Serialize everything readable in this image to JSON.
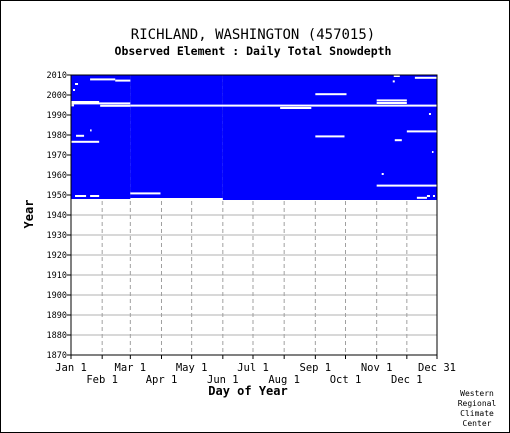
{
  "chart_data": {
    "type": "heatmap",
    "title": "RICHLAND, WASHINGTON   (457015)",
    "subtitle": "Observed Element : Daily Total Snowdepth",
    "xlabel": "Day of Year",
    "ylabel": "Year",
    "x_range_day_of_year": [
      1,
      365
    ],
    "x_ticks_top_row": [
      {
        "label": "Jan 1",
        "day": 1
      },
      {
        "label": "Mar 1",
        "day": 60
      },
      {
        "label": "May 1",
        "day": 121
      },
      {
        "label": "Jul 1",
        "day": 182
      },
      {
        "label": "Sep 1",
        "day": 244
      },
      {
        "label": "Nov 1",
        "day": 305
      },
      {
        "label": "Dec 31",
        "day": 365
      }
    ],
    "x_ticks_bottom_row": [
      {
        "label": "Feb 1",
        "day": 32
      },
      {
        "label": "Apr 1",
        "day": 91
      },
      {
        "label": "Jun 1",
        "day": 152
      },
      {
        "label": "Aug 1",
        "day": 213
      },
      {
        "label": "Oct 1",
        "day": 274
      },
      {
        "label": "Dec 1",
        "day": 335
      }
    ],
    "month_gridline_days": [
      1,
      32,
      60,
      91,
      121,
      152,
      182,
      213,
      244,
      274,
      305,
      335,
      365
    ],
    "y_range": [
      1870,
      2010
    ],
    "y_ticks": [
      1870,
      1880,
      1890,
      1900,
      1910,
      1920,
      1930,
      1940,
      1950,
      1960,
      1970,
      1980,
      1990,
      2000,
      2010
    ],
    "grid": true,
    "data_color": "#0000ff",
    "gap_color": "#ffffff",
    "record_span": {
      "start_year": 1948,
      "start_day_jan_to_feb": 1,
      "start_day_from_mar": 60,
      "start_day_from_jun": 152,
      "end_year": 2010,
      "end_day": 365
    },
    "gaps": [
      {
        "year": 1996.5,
        "day_start": 1,
        "day_end": 29
      },
      {
        "year": 1995.8,
        "day_start": 1,
        "day_end": 60
      },
      {
        "year": 1994.6,
        "day_start": 30,
        "day_end": 60
      },
      {
        "year": 1994.8,
        "day_start": 1,
        "day_end": 4
      },
      {
        "year": 1994.7,
        "day_start": 60,
        "day_end": 365
      },
      {
        "year": 1993.5,
        "day_start": 209,
        "day_end": 240
      },
      {
        "year": 2007.8,
        "day_start": 20,
        "day_end": 45
      },
      {
        "year": 2007.2,
        "day_start": 45,
        "day_end": 60
      },
      {
        "year": 2005.5,
        "day_start": 5,
        "day_end": 8
      },
      {
        "year": 2002.5,
        "day_start": 3,
        "day_end": 5
      },
      {
        "year": 2000.4,
        "day_start": 244,
        "day_end": 275
      },
      {
        "year": 1997.3,
        "day_start": 305,
        "day_end": 335
      },
      {
        "year": 1996.0,
        "day_start": 305,
        "day_end": 335
      },
      {
        "year": 1981.8,
        "day_start": 335,
        "day_end": 365
      },
      {
        "year": 1979.6,
        "day_start": 6,
        "day_end": 14
      },
      {
        "year": 1979.3,
        "day_start": 244,
        "day_end": 273
      },
      {
        "year": 1976.6,
        "day_start": 1,
        "day_end": 29
      },
      {
        "year": 1977.4,
        "day_start": 323,
        "day_end": 330
      },
      {
        "year": 1954.7,
        "day_start": 305,
        "day_end": 365
      },
      {
        "year": 1950.8,
        "day_start": 60,
        "day_end": 90
      },
      {
        "year": 1949.5,
        "day_start": 5,
        "day_end": 16
      },
      {
        "year": 1949.5,
        "day_start": 20,
        "day_end": 29
      },
      {
        "year": 1949.5,
        "day_start": 355,
        "day_end": 358
      },
      {
        "year": 1949.5,
        "day_start": 361,
        "day_end": 363
      },
      {
        "year": 1960.5,
        "day_start": 310,
        "day_end": 312
      },
      {
        "year": 1982.3,
        "day_start": 20,
        "day_end": 21
      },
      {
        "year": 2008.6,
        "day_start": 343,
        "day_end": 365
      },
      {
        "year": 2009.5,
        "day_start": 322,
        "day_end": 328
      },
      {
        "year": 2006.8,
        "day_start": 321,
        "day_end": 323
      },
      {
        "year": 1990.5,
        "day_start": 357,
        "day_end": 359
      },
      {
        "year": 1971.5,
        "day_start": 360,
        "day_end": 361
      },
      {
        "year": 1948.6,
        "day_start": 345,
        "day_end": 355
      }
    ]
  },
  "credit": {
    "line1": "Western",
    "line2": "Regional",
    "line3": "Climate",
    "line4": "Center"
  }
}
